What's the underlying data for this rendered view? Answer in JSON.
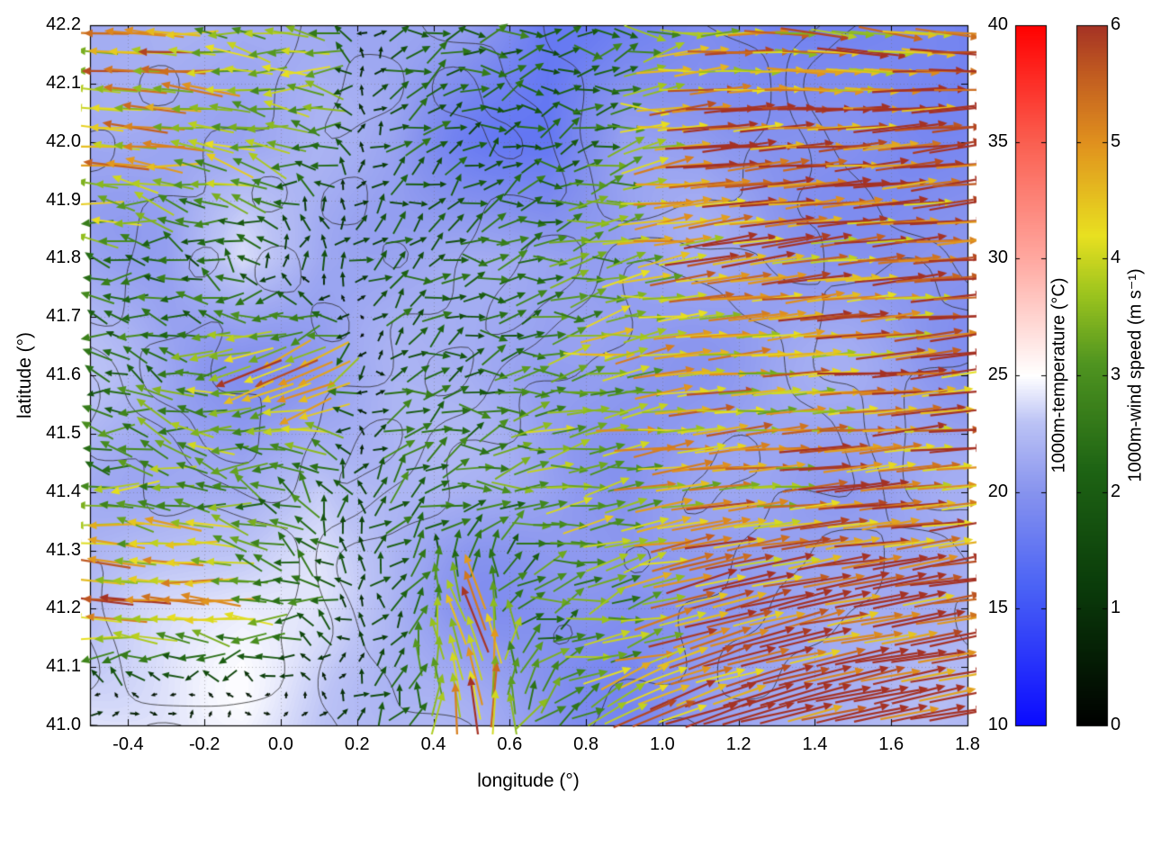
{
  "chart_data": {
    "type": "heatmap",
    "subtype": "temperature field with wind-vector (quiver) overlay and terrain contour lines",
    "title": "",
    "xlabel": "longitude (°)",
    "ylabel": "latitude (°)",
    "xlim": [
      -0.5,
      1.8
    ],
    "ylim": [
      41.0,
      42.2
    ],
    "grid": "dotted",
    "x_ticks": [
      "-0.4",
      "-0.2",
      "0.0",
      "0.2",
      "0.4",
      "0.6",
      "0.8",
      "1.0",
      "1.2",
      "1.4",
      "1.6",
      "1.8"
    ],
    "y_ticks": [
      "41.0",
      "41.1",
      "41.2",
      "41.3",
      "41.4",
      "41.5",
      "41.6",
      "41.7",
      "41.8",
      "41.9",
      "42.0",
      "42.1",
      "42.2"
    ],
    "colorbars": [
      {
        "label": "1000m-temperature (°C)",
        "range": [
          10,
          40
        ],
        "ticks": [
          "10",
          "15",
          "20",
          "25",
          "30",
          "35",
          "40"
        ],
        "stops": [
          {
            "v": 10,
            "c": "#0a0aff"
          },
          {
            "v": 16,
            "c": "#4b63f5"
          },
          {
            "v": 20,
            "c": "#8793ee"
          },
          {
            "v": 23,
            "c": "#bcc3f5"
          },
          {
            "v": 25,
            "c": "#ffffff"
          },
          {
            "v": 30,
            "c": "#ffa8a0"
          },
          {
            "v": 35,
            "c": "#fa5f50"
          },
          {
            "v": 40,
            "c": "#ff0000"
          }
        ]
      },
      {
        "label": "1000m-wind speed (m s⁻¹)",
        "range": [
          0,
          6
        ],
        "ticks": [
          "0",
          "1",
          "2",
          "3",
          "4",
          "5",
          "6"
        ],
        "stops": [
          {
            "v": 0,
            "c": "#000000"
          },
          {
            "v": 1.2,
            "c": "#0a3c0a"
          },
          {
            "v": 2.2,
            "c": "#1e6414"
          },
          {
            "v": 3.1,
            "c": "#4f9420"
          },
          {
            "v": 3.7,
            "c": "#9cc41e"
          },
          {
            "v": 4.2,
            "c": "#e8e020"
          },
          {
            "v": 5.0,
            "c": "#e0901e"
          },
          {
            "v": 5.6,
            "c": "#c05a20"
          },
          {
            "v": 6,
            "c": "#a53224"
          }
        ]
      }
    ],
    "temperature_field": {
      "x": [
        -0.5,
        -0.3,
        -0.1,
        0.1,
        0.3,
        0.5,
        0.7,
        0.9,
        1.1,
        1.3,
        1.5,
        1.8
      ],
      "y": [
        41.0,
        41.2,
        41.4,
        41.6,
        41.8,
        42.0,
        42.2
      ],
      "values": [
        [
          23.5,
          23.5,
          24.0,
          23.0,
          22.0,
          21.5,
          21.0,
          20.5,
          21.0,
          21.5,
          21.5,
          21.0
        ],
        [
          22.5,
          23.0,
          23.5,
          23.0,
          22.0,
          21.0,
          20.5,
          19.5,
          20.5,
          21.0,
          21.5,
          21.5
        ],
        [
          22.0,
          21.5,
          21.0,
          23.5,
          22.5,
          21.5,
          21.0,
          20.0,
          20.5,
          21.0,
          21.0,
          21.5
        ],
        [
          22.5,
          22.0,
          21.5,
          21.0,
          21.5,
          21.0,
          19.5,
          20.0,
          20.5,
          21.0,
          21.0,
          21.0
        ],
        [
          22.0,
          21.5,
          24.0,
          22.0,
          21.5,
          21.0,
          20.5,
          20.0,
          20.5,
          20.5,
          21.0,
          20.5
        ],
        [
          21.5,
          21.0,
          21.0,
          21.5,
          21.0,
          19.0,
          17.5,
          20.0,
          20.5,
          20.0,
          20.0,
          19.5
        ],
        [
          21.0,
          21.5,
          21.0,
          21.5,
          21.0,
          20.0,
          18.5,
          20.0,
          20.0,
          18.5,
          18.0,
          17.5
        ]
      ]
    },
    "wind_field": {
      "x": [
        -0.5,
        -0.3,
        -0.1,
        0.1,
        0.3,
        0.5,
        0.7,
        0.9,
        1.1,
        1.3,
        1.5,
        1.8
      ],
      "y": [
        41.0,
        41.2,
        41.4,
        41.6,
        41.8,
        42.0,
        42.2
      ],
      "u": [
        [
          1.5,
          1.2,
          0.8,
          0.5,
          1.5,
          -1.0,
          2.0,
          4.0,
          5.5,
          5.5,
          5.8,
          6.0
        ],
        [
          -5.5,
          -5.0,
          -4.0,
          -2.0,
          1.0,
          -2.0,
          2.5,
          3.0,
          5.0,
          5.8,
          6.0,
          6.0
        ],
        [
          -3.0,
          -3.5,
          -2.5,
          -1.5,
          2.0,
          2.5,
          3.5,
          4.0,
          4.5,
          4.5,
          5.0,
          5.5
        ],
        [
          -2.0,
          -2.5,
          -4.5,
          -5.0,
          2.0,
          2.0,
          3.0,
          4.0,
          4.5,
          4.5,
          5.0,
          5.5
        ],
        [
          -3.0,
          -2.0,
          -1.5,
          1.0,
          1.5,
          2.0,
          2.5,
          3.5,
          5.0,
          5.5,
          5.0,
          5.5
        ],
        [
          -5.0,
          -4.5,
          -4.0,
          -3.0,
          2.0,
          1.5,
          2.0,
          3.0,
          5.5,
          6.0,
          6.0,
          6.0
        ],
        [
          -4.5,
          -5.0,
          -3.0,
          -3.5,
          2.0,
          2.5,
          2.0,
          2.5,
          4.0,
          4.5,
          4.5,
          5.5
        ]
      ],
      "v": [
        [
          0.2,
          0.3,
          0.2,
          0.5,
          1.0,
          5.5,
          2.0,
          2.0,
          2.0,
          1.5,
          1.2,
          1.0
        ],
        [
          0.5,
          0.3,
          0.3,
          0.5,
          1.5,
          5.0,
          1.0,
          0.5,
          1.5,
          1.5,
          1.2,
          1.0
        ],
        [
          0.5,
          0.5,
          1.0,
          2.0,
          1.5,
          0.5,
          0.5,
          0.5,
          0.5,
          0.3,
          0.5,
          0.5
        ],
        [
          0.5,
          0.8,
          -2.0,
          -2.5,
          1.0,
          0.5,
          0.5,
          0.5,
          0.3,
          0.3,
          0.3,
          0.5
        ],
        [
          0.5,
          0.5,
          1.0,
          1.5,
          1.0,
          0.5,
          0.5,
          0.5,
          0.8,
          0.8,
          0.5,
          0.5
        ],
        [
          0.3,
          0.5,
          0.5,
          0.5,
          1.0,
          1.0,
          0.5,
          0.5,
          0.5,
          0.5,
          0.5,
          0.8
        ],
        [
          0.3,
          0.3,
          0.3,
          0.5,
          0.5,
          0.3,
          0.3,
          0.3,
          0.5,
          -0.5,
          -0.8,
          -0.5
        ]
      ]
    },
    "contours": {
      "color": "#2d2d2d",
      "levels": 3
    }
  }
}
